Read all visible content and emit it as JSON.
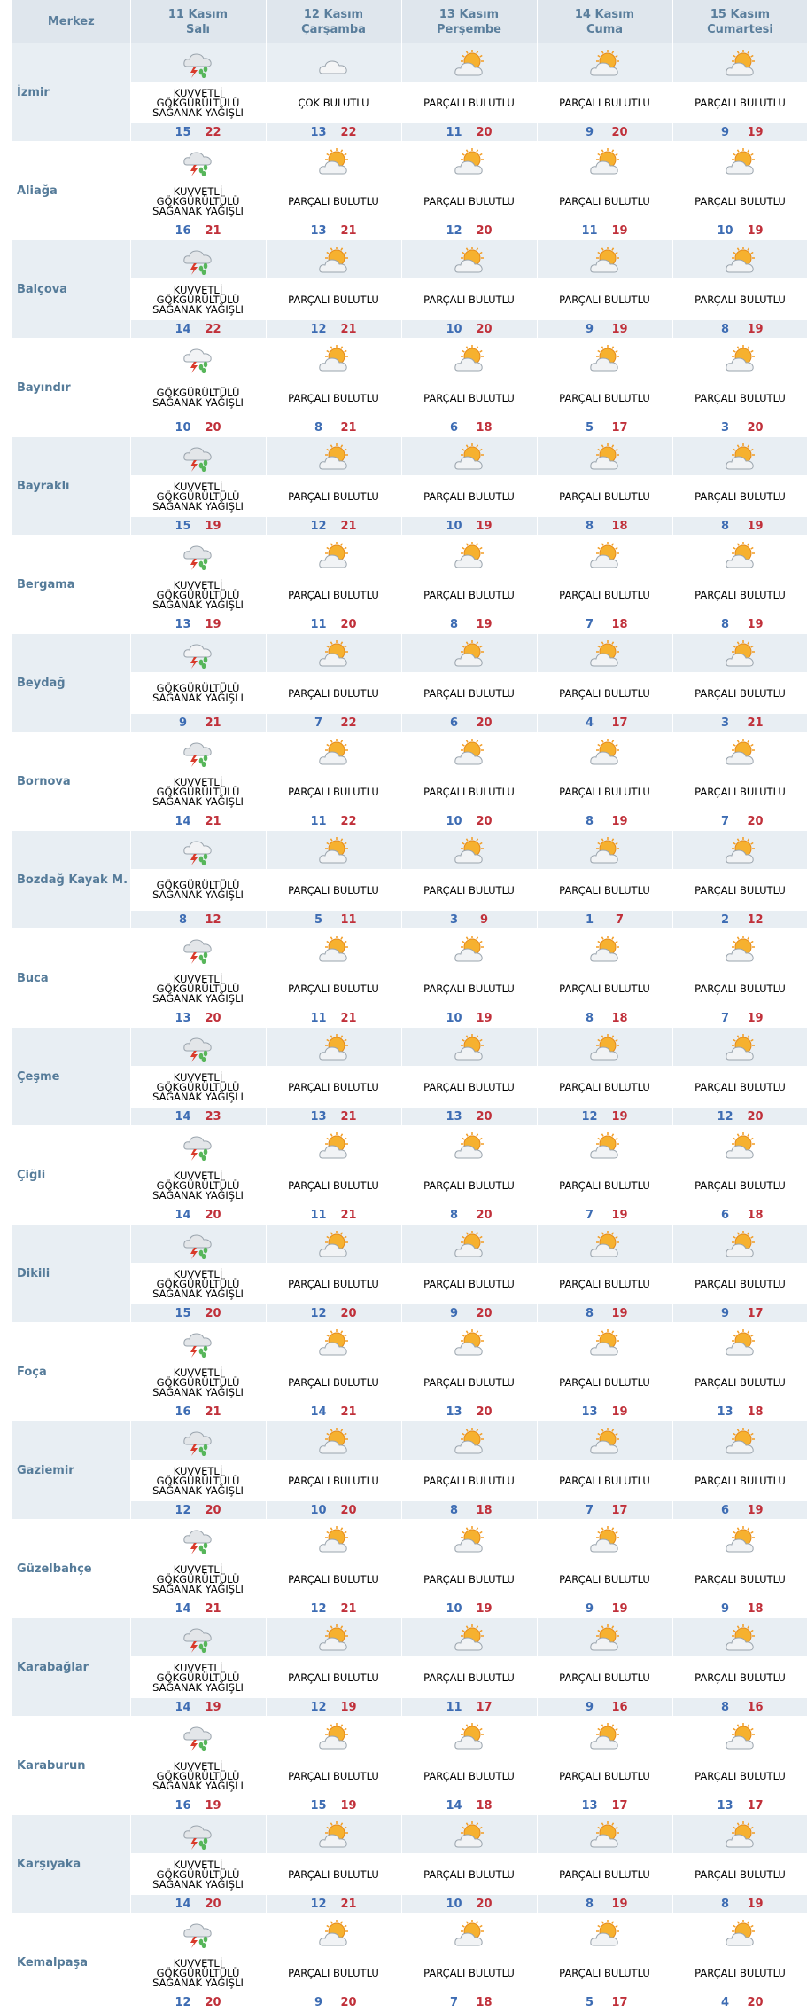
{
  "header": {
    "center_label": "Merkez",
    "days": [
      {
        "date": "11 Kasım",
        "weekday": "Salı"
      },
      {
        "date": "12 Kasım",
        "weekday": "Çarşamba"
      },
      {
        "date": "13 Kasım",
        "weekday": "Perşembe"
      },
      {
        "date": "14 Kasım",
        "weekday": "Cuma"
      },
      {
        "date": "15 Kasım",
        "weekday": "Cumartesi"
      }
    ]
  },
  "icon_names": {
    "storm": "thunderstorm-icon",
    "thunder-rain": "thunder-rain-icon",
    "cloudy": "cloudy-icon",
    "partly": "partly-cloudy-icon"
  },
  "colors": {
    "min_temp": "#3d6cb3",
    "max_temp": "#c0303a",
    "header_text": "#5a7e9c",
    "row_alt_bg": "#e8eef3"
  },
  "locations": [
    {
      "name": "İzmir",
      "days": [
        {
          "icon": "storm",
          "desc": [
            "KUVVETLİ",
            "GÖKGÜRÜLTÜLÜ",
            "SAĞANAK YAĞIŞLI"
          ],
          "min": "15",
          "max": "22"
        },
        {
          "icon": "cloudy",
          "desc": [
            "ÇOK BULUTLU"
          ],
          "min": "13",
          "max": "22"
        },
        {
          "icon": "partly",
          "desc": [
            "PARÇALI BULUTLU"
          ],
          "min": "11",
          "max": "20"
        },
        {
          "icon": "partly",
          "desc": [
            "PARÇALI BULUTLU"
          ],
          "min": "9",
          "max": "20"
        },
        {
          "icon": "partly",
          "desc": [
            "PARÇALI BULUTLU"
          ],
          "min": "9",
          "max": "19"
        }
      ]
    },
    {
      "name": "Aliağa",
      "days": [
        {
          "icon": "storm",
          "desc": [
            "KUVVETLİ",
            "GÖKGÜRÜLTÜLÜ",
            "SAĞANAK YAĞIŞLI"
          ],
          "min": "16",
          "max": "21"
        },
        {
          "icon": "partly",
          "desc": [
            "PARÇALI BULUTLU"
          ],
          "min": "13",
          "max": "21"
        },
        {
          "icon": "partly",
          "desc": [
            "PARÇALI BULUTLU"
          ],
          "min": "12",
          "max": "20"
        },
        {
          "icon": "partly",
          "desc": [
            "PARÇALI BULUTLU"
          ],
          "min": "11",
          "max": "19"
        },
        {
          "icon": "partly",
          "desc": [
            "PARÇALI BULUTLU"
          ],
          "min": "10",
          "max": "19"
        }
      ]
    },
    {
      "name": "Balçova",
      "days": [
        {
          "icon": "storm",
          "desc": [
            "KUVVETLİ",
            "GÖKGÜRÜLTÜLÜ",
            "SAĞANAK YAĞIŞLI"
          ],
          "min": "14",
          "max": "22"
        },
        {
          "icon": "partly",
          "desc": [
            "PARÇALI BULUTLU"
          ],
          "min": "12",
          "max": "21"
        },
        {
          "icon": "partly",
          "desc": [
            "PARÇALI BULUTLU"
          ],
          "min": "10",
          "max": "20"
        },
        {
          "icon": "partly",
          "desc": [
            "PARÇALI BULUTLU"
          ],
          "min": "9",
          "max": "19"
        },
        {
          "icon": "partly",
          "desc": [
            "PARÇALI BULUTLU"
          ],
          "min": "8",
          "max": "19"
        }
      ]
    },
    {
      "name": "Bayındır",
      "days": [
        {
          "icon": "thunder-rain",
          "desc": [
            "GÖKGÜRÜLTÜLÜ",
            "SAĞANAK YAĞIŞLI"
          ],
          "min": "10",
          "max": "20"
        },
        {
          "icon": "partly",
          "desc": [
            "PARÇALI BULUTLU"
          ],
          "min": "8",
          "max": "21"
        },
        {
          "icon": "partly",
          "desc": [
            "PARÇALI BULUTLU"
          ],
          "min": "6",
          "max": "18"
        },
        {
          "icon": "partly",
          "desc": [
            "PARÇALI BULUTLU"
          ],
          "min": "5",
          "max": "17"
        },
        {
          "icon": "partly",
          "desc": [
            "PARÇALI BULUTLU"
          ],
          "min": "3",
          "max": "20"
        }
      ]
    },
    {
      "name": "Bayraklı",
      "days": [
        {
          "icon": "storm",
          "desc": [
            "KUVVETLİ",
            "GÖKGÜRÜLTÜLÜ",
            "SAĞANAK YAĞIŞLI"
          ],
          "min": "15",
          "max": "19"
        },
        {
          "icon": "partly",
          "desc": [
            "PARÇALI BULUTLU"
          ],
          "min": "12",
          "max": "21"
        },
        {
          "icon": "partly",
          "desc": [
            "PARÇALI BULUTLU"
          ],
          "min": "10",
          "max": "19"
        },
        {
          "icon": "partly",
          "desc": [
            "PARÇALI BULUTLU"
          ],
          "min": "8",
          "max": "18"
        },
        {
          "icon": "partly",
          "desc": [
            "PARÇALI BULUTLU"
          ],
          "min": "8",
          "max": "19"
        }
      ]
    },
    {
      "name": "Bergama",
      "days": [
        {
          "icon": "storm",
          "desc": [
            "KUVVETLİ",
            "GÖKGÜRÜLTÜLÜ",
            "SAĞANAK YAĞIŞLI"
          ],
          "min": "13",
          "max": "19"
        },
        {
          "icon": "partly",
          "desc": [
            "PARÇALI BULUTLU"
          ],
          "min": "11",
          "max": "20"
        },
        {
          "icon": "partly",
          "desc": [
            "PARÇALI BULUTLU"
          ],
          "min": "8",
          "max": "19"
        },
        {
          "icon": "partly",
          "desc": [
            "PARÇALI BULUTLU"
          ],
          "min": "7",
          "max": "18"
        },
        {
          "icon": "partly",
          "desc": [
            "PARÇALI BULUTLU"
          ],
          "min": "8",
          "max": "19"
        }
      ]
    },
    {
      "name": "Beydağ",
      "days": [
        {
          "icon": "thunder-rain",
          "desc": [
            "GÖKGÜRÜLTÜLÜ",
            "SAĞANAK YAĞIŞLI"
          ],
          "min": "9",
          "max": "21"
        },
        {
          "icon": "partly",
          "desc": [
            "PARÇALI BULUTLU"
          ],
          "min": "7",
          "max": "22"
        },
        {
          "icon": "partly",
          "desc": [
            "PARÇALI BULUTLU"
          ],
          "min": "6",
          "max": "20"
        },
        {
          "icon": "partly",
          "desc": [
            "PARÇALI BULUTLU"
          ],
          "min": "4",
          "max": "17"
        },
        {
          "icon": "partly",
          "desc": [
            "PARÇALI BULUTLU"
          ],
          "min": "3",
          "max": "21"
        }
      ]
    },
    {
      "name": "Bornova",
      "days": [
        {
          "icon": "storm",
          "desc": [
            "KUVVETLİ",
            "GÖKGÜRÜLTÜLÜ",
            "SAĞANAK YAĞIŞLI"
          ],
          "min": "14",
          "max": "21"
        },
        {
          "icon": "partly",
          "desc": [
            "PARÇALI BULUTLU"
          ],
          "min": "11",
          "max": "22"
        },
        {
          "icon": "partly",
          "desc": [
            "PARÇALI BULUTLU"
          ],
          "min": "10",
          "max": "20"
        },
        {
          "icon": "partly",
          "desc": [
            "PARÇALI BULUTLU"
          ],
          "min": "8",
          "max": "19"
        },
        {
          "icon": "partly",
          "desc": [
            "PARÇALI BULUTLU"
          ],
          "min": "7",
          "max": "20"
        }
      ]
    },
    {
      "name": "Bozdağ Kayak M.",
      "days": [
        {
          "icon": "thunder-rain",
          "desc": [
            "GÖKGÜRÜLTÜLÜ",
            "SAĞANAK YAĞIŞLI"
          ],
          "min": "8",
          "max": "12"
        },
        {
          "icon": "partly",
          "desc": [
            "PARÇALI BULUTLU"
          ],
          "min": "5",
          "max": "11"
        },
        {
          "icon": "partly",
          "desc": [
            "PARÇALI BULUTLU"
          ],
          "min": "3",
          "max": "9"
        },
        {
          "icon": "partly",
          "desc": [
            "PARÇALI BULUTLU"
          ],
          "min": "1",
          "max": "7"
        },
        {
          "icon": "partly",
          "desc": [
            "PARÇALI BULUTLU"
          ],
          "min": "2",
          "max": "12"
        }
      ]
    },
    {
      "name": "Buca",
      "days": [
        {
          "icon": "storm",
          "desc": [
            "KUVVETLİ",
            "GÖKGÜRÜLTÜLÜ",
            "SAĞANAK YAĞIŞLI"
          ],
          "min": "13",
          "max": "20"
        },
        {
          "icon": "partly",
          "desc": [
            "PARÇALI BULUTLU"
          ],
          "min": "11",
          "max": "21"
        },
        {
          "icon": "partly",
          "desc": [
            "PARÇALI BULUTLU"
          ],
          "min": "10",
          "max": "19"
        },
        {
          "icon": "partly",
          "desc": [
            "PARÇALI BULUTLU"
          ],
          "min": "8",
          "max": "18"
        },
        {
          "icon": "partly",
          "desc": [
            "PARÇALI BULUTLU"
          ],
          "min": "7",
          "max": "19"
        }
      ]
    },
    {
      "name": "Çeşme",
      "days": [
        {
          "icon": "storm",
          "desc": [
            "KUVVETLİ",
            "GÖKGÜRÜLTÜLÜ",
            "SAĞANAK YAĞIŞLI"
          ],
          "min": "14",
          "max": "23"
        },
        {
          "icon": "partly",
          "desc": [
            "PARÇALI BULUTLU"
          ],
          "min": "13",
          "max": "21"
        },
        {
          "icon": "partly",
          "desc": [
            "PARÇALI BULUTLU"
          ],
          "min": "13",
          "max": "20"
        },
        {
          "icon": "partly",
          "desc": [
            "PARÇALI BULUTLU"
          ],
          "min": "12",
          "max": "19"
        },
        {
          "icon": "partly",
          "desc": [
            "PARÇALI BULUTLU"
          ],
          "min": "12",
          "max": "20"
        }
      ]
    },
    {
      "name": "Çiğli",
      "days": [
        {
          "icon": "storm",
          "desc": [
            "KUVVETLİ",
            "GÖKGÜRÜLTÜLÜ",
            "SAĞANAK YAĞIŞLI"
          ],
          "min": "14",
          "max": "20"
        },
        {
          "icon": "partly",
          "desc": [
            "PARÇALI BULUTLU"
          ],
          "min": "11",
          "max": "21"
        },
        {
          "icon": "partly",
          "desc": [
            "PARÇALI BULUTLU"
          ],
          "min": "8",
          "max": "20"
        },
        {
          "icon": "partly",
          "desc": [
            "PARÇALI BULUTLU"
          ],
          "min": "7",
          "max": "19"
        },
        {
          "icon": "partly",
          "desc": [
            "PARÇALI BULUTLU"
          ],
          "min": "6",
          "max": "18"
        }
      ]
    },
    {
      "name": "Dikili",
      "days": [
        {
          "icon": "storm",
          "desc": [
            "KUVVETLİ",
            "GÖKGÜRÜLTÜLÜ",
            "SAĞANAK YAĞIŞLI"
          ],
          "min": "15",
          "max": "20"
        },
        {
          "icon": "partly",
          "desc": [
            "PARÇALI BULUTLU"
          ],
          "min": "12",
          "max": "20"
        },
        {
          "icon": "partly",
          "desc": [
            "PARÇALI BULUTLU"
          ],
          "min": "9",
          "max": "20"
        },
        {
          "icon": "partly",
          "desc": [
            "PARÇALI BULUTLU"
          ],
          "min": "8",
          "max": "19"
        },
        {
          "icon": "partly",
          "desc": [
            "PARÇALI BULUTLU"
          ],
          "min": "9",
          "max": "17"
        }
      ]
    },
    {
      "name": "Foça",
      "days": [
        {
          "icon": "storm",
          "desc": [
            "KUVVETLİ",
            "GÖKGÜRÜLTÜLÜ",
            "SAĞANAK YAĞIŞLI"
          ],
          "min": "16",
          "max": "21"
        },
        {
          "icon": "partly",
          "desc": [
            "PARÇALI BULUTLU"
          ],
          "min": "14",
          "max": "21"
        },
        {
          "icon": "partly",
          "desc": [
            "PARÇALI BULUTLU"
          ],
          "min": "13",
          "max": "20"
        },
        {
          "icon": "partly",
          "desc": [
            "PARÇALI BULUTLU"
          ],
          "min": "13",
          "max": "19"
        },
        {
          "icon": "partly",
          "desc": [
            "PARÇALI BULUTLU"
          ],
          "min": "13",
          "max": "18"
        }
      ]
    },
    {
      "name": "Gaziemir",
      "days": [
        {
          "icon": "storm",
          "desc": [
            "KUVVETLİ",
            "GÖKGÜRÜLTÜLÜ",
            "SAĞANAK YAĞIŞLI"
          ],
          "min": "12",
          "max": "20"
        },
        {
          "icon": "partly",
          "desc": [
            "PARÇALI BULUTLU"
          ],
          "min": "10",
          "max": "20"
        },
        {
          "icon": "partly",
          "desc": [
            "PARÇALI BULUTLU"
          ],
          "min": "8",
          "max": "18"
        },
        {
          "icon": "partly",
          "desc": [
            "PARÇALI BULUTLU"
          ],
          "min": "7",
          "max": "17"
        },
        {
          "icon": "partly",
          "desc": [
            "PARÇALI BULUTLU"
          ],
          "min": "6",
          "max": "19"
        }
      ]
    },
    {
      "name": "Güzelbahçe",
      "days": [
        {
          "icon": "storm",
          "desc": [
            "KUVVETLİ",
            "GÖKGÜRÜLTÜLÜ",
            "SAĞANAK YAĞIŞLI"
          ],
          "min": "14",
          "max": "21"
        },
        {
          "icon": "partly",
          "desc": [
            "PARÇALI BULUTLU"
          ],
          "min": "12",
          "max": "21"
        },
        {
          "icon": "partly",
          "desc": [
            "PARÇALI BULUTLU"
          ],
          "min": "10",
          "max": "19"
        },
        {
          "icon": "partly",
          "desc": [
            "PARÇALI BULUTLU"
          ],
          "min": "9",
          "max": "19"
        },
        {
          "icon": "partly",
          "desc": [
            "PARÇALI BULUTLU"
          ],
          "min": "9",
          "max": "18"
        }
      ]
    },
    {
      "name": "Karabağlar",
      "days": [
        {
          "icon": "storm",
          "desc": [
            "KUVVETLİ",
            "GÖKGÜRÜLTÜLÜ",
            "SAĞANAK YAĞIŞLI"
          ],
          "min": "14",
          "max": "19"
        },
        {
          "icon": "partly",
          "desc": [
            "PARÇALI BULUTLU"
          ],
          "min": "12",
          "max": "19"
        },
        {
          "icon": "partly",
          "desc": [
            "PARÇALI BULUTLU"
          ],
          "min": "11",
          "max": "17"
        },
        {
          "icon": "partly",
          "desc": [
            "PARÇALI BULUTLU"
          ],
          "min": "9",
          "max": "16"
        },
        {
          "icon": "partly",
          "desc": [
            "PARÇALI BULUTLU"
          ],
          "min": "8",
          "max": "16"
        }
      ]
    },
    {
      "name": "Karaburun",
      "days": [
        {
          "icon": "storm",
          "desc": [
            "KUVVETLİ",
            "GÖKGÜRÜLTÜLÜ",
            "SAĞANAK YAĞIŞLI"
          ],
          "min": "16",
          "max": "19"
        },
        {
          "icon": "partly",
          "desc": [
            "PARÇALI BULUTLU"
          ],
          "min": "15",
          "max": "19"
        },
        {
          "icon": "partly",
          "desc": [
            "PARÇALI BULUTLU"
          ],
          "min": "14",
          "max": "18"
        },
        {
          "icon": "partly",
          "desc": [
            "PARÇALI BULUTLU"
          ],
          "min": "13",
          "max": "17"
        },
        {
          "icon": "partly",
          "desc": [
            "PARÇALI BULUTLU"
          ],
          "min": "13",
          "max": "17"
        }
      ]
    },
    {
      "name": "Karşıyaka",
      "days": [
        {
          "icon": "storm",
          "desc": [
            "KUVVETLİ",
            "GÖKGÜRÜLTÜLÜ",
            "SAĞANAK YAĞIŞLI"
          ],
          "min": "14",
          "max": "20"
        },
        {
          "icon": "partly",
          "desc": [
            "PARÇALI BULUTLU"
          ],
          "min": "12",
          "max": "21"
        },
        {
          "icon": "partly",
          "desc": [
            "PARÇALI BULUTLU"
          ],
          "min": "10",
          "max": "20"
        },
        {
          "icon": "partly",
          "desc": [
            "PARÇALI BULUTLU"
          ],
          "min": "8",
          "max": "19"
        },
        {
          "icon": "partly",
          "desc": [
            "PARÇALI BULUTLU"
          ],
          "min": "8",
          "max": "19"
        }
      ]
    },
    {
      "name": "Kemalpaşa",
      "days": [
        {
          "icon": "storm",
          "desc": [
            "KUVVETLİ",
            "GÖKGÜRÜLTÜLÜ",
            "SAĞANAK YAĞIŞLI"
          ],
          "min": "12",
          "max": "20"
        },
        {
          "icon": "partly",
          "desc": [
            "PARÇALI BULUTLU"
          ],
          "min": "9",
          "max": "20"
        },
        {
          "icon": "partly",
          "desc": [
            "PARÇALI BULUTLU"
          ],
          "min": "7",
          "max": "18"
        },
        {
          "icon": "partly",
          "desc": [
            "PARÇALI BULUTLU"
          ],
          "min": "5",
          "max": "17"
        },
        {
          "icon": "partly",
          "desc": [
            "PARÇALI BULUTLU"
          ],
          "min": "4",
          "max": "20"
        }
      ]
    }
  ]
}
